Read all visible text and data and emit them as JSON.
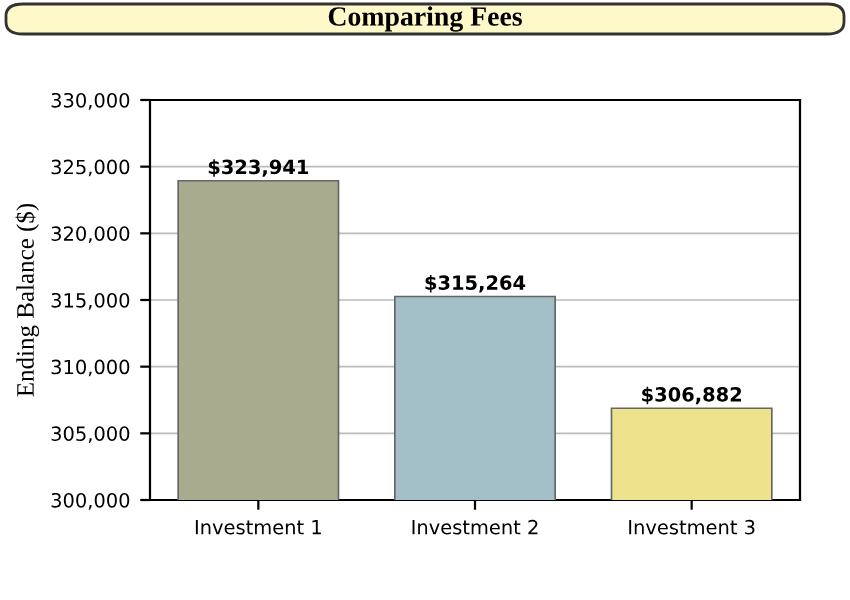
{
  "chart_data": {
    "type": "bar",
    "title": "Comparing Fees",
    "ylabel": "Ending Balance ($)",
    "categories": [
      "Investment 1",
      "Investment 2",
      "Investment 3"
    ],
    "values": [
      323941,
      315264,
      306882
    ],
    "colors": [
      "#a9ab8e",
      "#a3bfc7",
      "#ece38c"
    ],
    "value_labels": [
      "$323,941",
      "$315,264",
      "$306,882"
    ],
    "ylim": [
      300000,
      330000
    ],
    "yticks": [
      {
        "value": 300000,
        "label": "300,000"
      },
      {
        "value": 305000,
        "label": "305,000"
      },
      {
        "value": 310000,
        "label": "310,000"
      },
      {
        "value": 315000,
        "label": "315,000"
      },
      {
        "value": 320000,
        "label": "320,000"
      },
      {
        "value": 325000,
        "label": "325,000"
      },
      {
        "value": 330000,
        "label": "330,000"
      }
    ],
    "grid": "y",
    "legend": false
  }
}
